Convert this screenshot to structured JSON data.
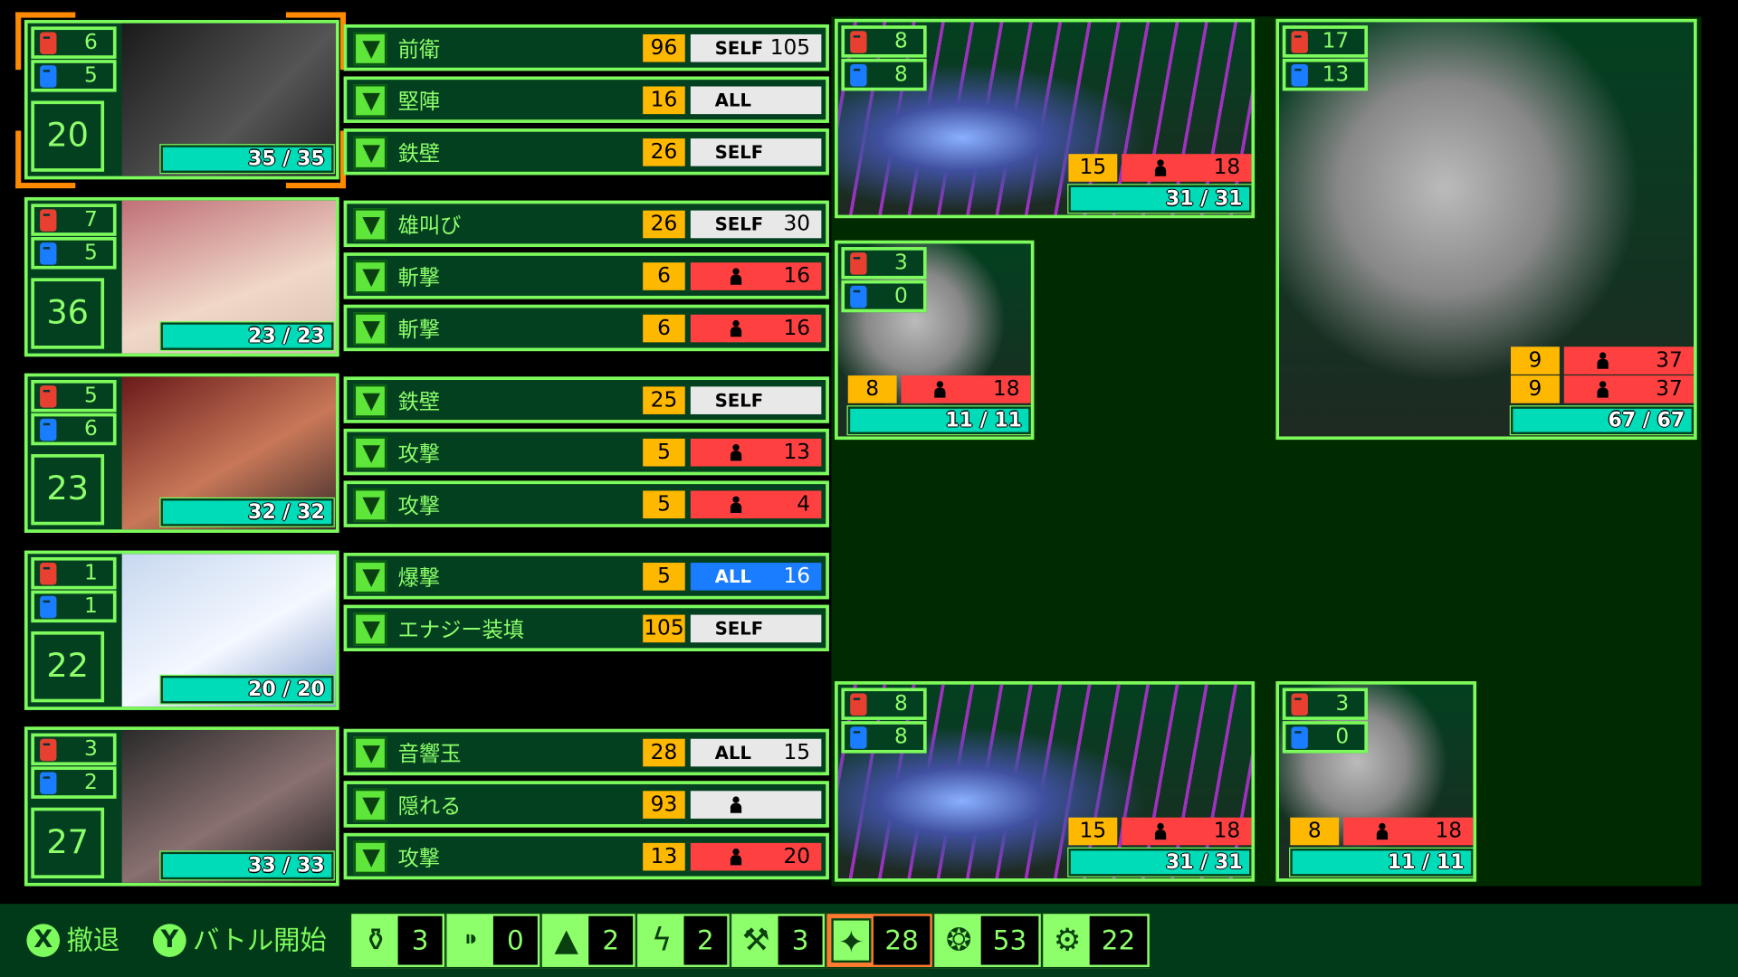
{
  "colors": {
    "accent": "#7dfa5c",
    "panel": "#034020",
    "hp": "#00dcb8",
    "cost": "#ffb800",
    "single": "#ff4040",
    "all_blue": "#1a7cff",
    "neutral": "#e8e8e8",
    "selected": "#ff8a00"
  },
  "party": [
    {
      "red": "6",
      "blue": "5",
      "level": "20",
      "hp": "35 / 35",
      "selected": true,
      "art": "soldier-portrait",
      "skills": [
        {
          "name": "前衛",
          "cost": "96",
          "target": "SELF",
          "value": "105",
          "style": "white"
        },
        {
          "name": "堅陣",
          "cost": "16",
          "target": "ALL",
          "value": "",
          "style": "white"
        },
        {
          "name": "鉄壁",
          "cost": "26",
          "target": "SELF",
          "value": "",
          "style": "white"
        }
      ]
    },
    {
      "red": "7",
      "blue": "5",
      "level": "36",
      "hp": "23 / 23",
      "art": "pink-hair-portrait",
      "skills": [
        {
          "name": "雄叫び",
          "cost": "26",
          "target": "SELF",
          "value": "30",
          "style": "white"
        },
        {
          "name": "斬撃",
          "cost": "6",
          "target": "single",
          "value": "16",
          "style": "red"
        },
        {
          "name": "斬撃",
          "cost": "6",
          "target": "single",
          "value": "16",
          "style": "red"
        }
      ]
    },
    {
      "red": "5",
      "blue": "6",
      "level": "23",
      "hp": "32 / 32",
      "art": "masked-man-portrait",
      "skills": [
        {
          "name": "鉄壁",
          "cost": "25",
          "target": "SELF",
          "value": "",
          "style": "white"
        },
        {
          "name": "攻撃",
          "cost": "5",
          "target": "single",
          "value": "13",
          "style": "red"
        },
        {
          "name": "攻撃",
          "cost": "5",
          "target": "single",
          "value": "4",
          "style": "red"
        }
      ]
    },
    {
      "red": "1",
      "blue": "1",
      "level": "22",
      "hp": "20 / 20",
      "art": "silver-hair-portrait",
      "skills": [
        {
          "name": "爆撃",
          "cost": "5",
          "target": "ALL",
          "value": "16",
          "style": "blue"
        },
        {
          "name": "エナジー装填",
          "cost": "105",
          "target": "SELF",
          "value": "",
          "style": "white"
        }
      ]
    },
    {
      "red": "3",
      "blue": "2",
      "level": "27",
      "hp": "33 / 33",
      "art": "hooded-portrait",
      "skills": [
        {
          "name": "音響玉",
          "cost": "28",
          "target": "ALL",
          "value": "15",
          "style": "white"
        },
        {
          "name": "隠れる",
          "cost": "93",
          "target": "single",
          "value": "",
          "style": "white"
        },
        {
          "name": "攻撃",
          "cost": "13",
          "target": "single",
          "value": "20",
          "style": "red"
        }
      ]
    }
  ],
  "enemies": [
    {
      "red": "8",
      "blue": "8",
      "hp": "31 / 31",
      "attacks": [
        {
          "cost": "15",
          "value": "18"
        }
      ],
      "art": "skeletal-fish"
    },
    {
      "red": "3",
      "blue": "0",
      "hp": "11 / 11",
      "attacks": [
        {
          "cost": "8",
          "value": "18"
        }
      ],
      "art": "mouth-beast-small"
    },
    {
      "red": "17",
      "blue": "13",
      "hp": "67 / 67",
      "attacks": [
        {
          "cost": "9",
          "value": "37"
        },
        {
          "cost": "9",
          "value": "37"
        }
      ],
      "art": "mouth-beast"
    },
    {
      "red": "8",
      "blue": "8",
      "hp": "31 / 31",
      "attacks": [
        {
          "cost": "15",
          "value": "18"
        }
      ],
      "art": "skeletal-fish"
    },
    {
      "red": "3",
      "blue": "0",
      "hp": "11 / 11",
      "attacks": [
        {
          "cost": "8",
          "value": "18"
        }
      ],
      "art": "mouth-beast-small"
    }
  ],
  "footer": {
    "retreat": {
      "key": "X",
      "label": "撤退"
    },
    "start": {
      "key": "Y",
      "label": "バトル開始"
    },
    "items": [
      {
        "icon": "medicine-bottle-icon",
        "glyph": "⚱",
        "count": "3"
      },
      {
        "icon": "ammo-icon",
        "glyph": "⁍",
        "count": "0"
      },
      {
        "icon": "drop-icon",
        "glyph": "▲",
        "count": "2"
      },
      {
        "icon": "battery-icon",
        "glyph": "ϟ",
        "count": "2"
      },
      {
        "icon": "tools-icon",
        "glyph": "⚒",
        "count": "3"
      },
      {
        "icon": "energy-can-icon",
        "glyph": "✦",
        "count": "28",
        "highlight": true
      },
      {
        "icon": "scrap-icon",
        "glyph": "❂",
        "count": "53"
      },
      {
        "icon": "gears-icon",
        "glyph": "⚙",
        "count": "22"
      }
    ]
  }
}
